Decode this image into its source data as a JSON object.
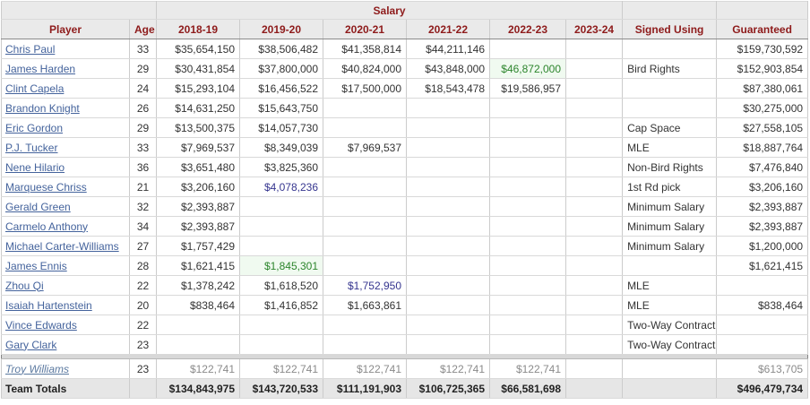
{
  "table": {
    "group_header": {
      "salary": "Salary"
    },
    "columns": [
      "Player",
      "Age",
      "2018-19",
      "2019-20",
      "2020-21",
      "2021-22",
      "2022-23",
      "2023-24",
      "Signed Using",
      "Guaranteed"
    ],
    "rows": [
      {
        "player": "Chris Paul",
        "age": "33",
        "salaries": [
          "$35,654,150",
          "$38,506,482",
          "$41,358,814",
          "$44,211,146",
          "",
          ""
        ],
        "styles": [
          "",
          "",
          "",
          "",
          "",
          ""
        ],
        "signed_using": "",
        "guaranteed": "$159,730,592"
      },
      {
        "player": "James Harden",
        "age": "29",
        "salaries": [
          "$30,431,854",
          "$37,800,000",
          "$40,824,000",
          "$43,848,000",
          "$46,872,000",
          ""
        ],
        "styles": [
          "",
          "",
          "",
          "",
          "green",
          ""
        ],
        "signed_using": "Bird Rights",
        "guaranteed": "$152,903,854"
      },
      {
        "player": "Clint Capela",
        "age": "24",
        "salaries": [
          "$15,293,104",
          "$16,456,522",
          "$17,500,000",
          "$18,543,478",
          "$19,586,957",
          ""
        ],
        "styles": [
          "",
          "",
          "",
          "",
          "",
          ""
        ],
        "signed_using": "",
        "guaranteed": "$87,380,061"
      },
      {
        "player": "Brandon Knight",
        "age": "26",
        "salaries": [
          "$14,631,250",
          "$15,643,750",
          "",
          "",
          "",
          ""
        ],
        "styles": [
          "",
          "",
          "",
          "",
          "",
          ""
        ],
        "signed_using": "",
        "guaranteed": "$30,275,000"
      },
      {
        "player": "Eric Gordon",
        "age": "29",
        "salaries": [
          "$13,500,375",
          "$14,057,730",
          "",
          "",
          "",
          ""
        ],
        "styles": [
          "",
          "",
          "",
          "",
          "",
          ""
        ],
        "signed_using": "Cap Space",
        "guaranteed": "$27,558,105"
      },
      {
        "player": "P.J. Tucker",
        "age": "33",
        "salaries": [
          "$7,969,537",
          "$8,349,039",
          "$7,969,537",
          "",
          "",
          ""
        ],
        "styles": [
          "",
          "",
          "",
          "",
          "",
          ""
        ],
        "signed_using": "MLE",
        "guaranteed": "$18,887,764"
      },
      {
        "player": "Nene Hilario",
        "age": "36",
        "salaries": [
          "$3,651,480",
          "$3,825,360",
          "",
          "",
          "",
          ""
        ],
        "styles": [
          "",
          "",
          "",
          "",
          "",
          ""
        ],
        "signed_using": "Non-Bird Rights",
        "guaranteed": "$7,476,840"
      },
      {
        "player": "Marquese Chriss",
        "age": "21",
        "salaries": [
          "$3,206,160",
          "$4,078,236",
          "",
          "",
          "",
          ""
        ],
        "styles": [
          "",
          "blue",
          "",
          "",
          "",
          ""
        ],
        "signed_using": "1st Rd pick",
        "guaranteed": "$3,206,160"
      },
      {
        "player": "Gerald Green",
        "age": "32",
        "salaries": [
          "$2,393,887",
          "",
          "",
          "",
          "",
          ""
        ],
        "styles": [
          "",
          "",
          "",
          "",
          "",
          ""
        ],
        "signed_using": "Minimum Salary",
        "guaranteed": "$2,393,887"
      },
      {
        "player": "Carmelo Anthony",
        "age": "34",
        "salaries": [
          "$2,393,887",
          "",
          "",
          "",
          "",
          ""
        ],
        "styles": [
          "",
          "",
          "",
          "",
          "",
          ""
        ],
        "signed_using": "Minimum Salary",
        "guaranteed": "$2,393,887"
      },
      {
        "player": "Michael Carter-Williams",
        "age": "27",
        "salaries": [
          "$1,757,429",
          "",
          "",
          "",
          "",
          ""
        ],
        "styles": [
          "",
          "",
          "",
          "",
          "",
          ""
        ],
        "signed_using": "Minimum Salary",
        "guaranteed": "$1,200,000"
      },
      {
        "player": "James Ennis",
        "age": "28",
        "salaries": [
          "$1,621,415",
          "$1,845,301",
          "",
          "",
          "",
          ""
        ],
        "styles": [
          "",
          "green",
          "",
          "",
          "",
          ""
        ],
        "signed_using": "",
        "guaranteed": "$1,621,415"
      },
      {
        "player": "Zhou Qi",
        "age": "22",
        "salaries": [
          "$1,378,242",
          "$1,618,520",
          "$1,752,950",
          "",
          "",
          ""
        ],
        "styles": [
          "",
          "",
          "blue",
          "",
          "",
          ""
        ],
        "signed_using": "MLE",
        "guaranteed": ""
      },
      {
        "player": "Isaiah Hartenstein",
        "age": "20",
        "salaries": [
          "$838,464",
          "$1,416,852",
          "$1,663,861",
          "",
          "",
          ""
        ],
        "styles": [
          "",
          "",
          "",
          "",
          "",
          ""
        ],
        "signed_using": "MLE",
        "guaranteed": "$838,464"
      },
      {
        "player": "Vince Edwards",
        "age": "22",
        "salaries": [
          "",
          "",
          "",
          "",
          "",
          ""
        ],
        "styles": [
          "",
          "",
          "",
          "",
          "",
          ""
        ],
        "signed_using": "Two-Way Contract",
        "guaranteed": ""
      },
      {
        "player": "Gary Clark",
        "age": "23",
        "salaries": [
          "",
          "",
          "",
          "",
          "",
          ""
        ],
        "styles": [
          "",
          "",
          "",
          "",
          "",
          ""
        ],
        "signed_using": "Two-Way Contract",
        "guaranteed": ""
      }
    ],
    "partial_row": {
      "player": "Troy Williams",
      "age": "23",
      "salaries": [
        "$122,741",
        "$122,741",
        "$122,741",
        "$122,741",
        "$122,741",
        ""
      ],
      "styles": [
        "",
        "",
        "",
        "",
        "",
        ""
      ],
      "signed_using": "",
      "guaranteed": "$613,705"
    },
    "totals_row": {
      "player": "Team Totals",
      "age": "",
      "salaries": [
        "$134,843,975",
        "$143,720,533",
        "$111,191,903",
        "$106,725,365",
        "$66,581,698",
        ""
      ],
      "styles": [
        "",
        "",
        "",
        "",
        "",
        ""
      ],
      "signed_using": "",
      "guaranteed": "$496,479,734"
    }
  },
  "colors": {
    "header_text": "#8e1b1b",
    "header_bg": "#eaeaea",
    "player_link": "#44639c",
    "green_value": "#2c852c",
    "green_value_bg": "#f0faf0",
    "blue_option_value": "#35358f",
    "partial_value_gray": "#8a8a8a",
    "totals_bg": "#e6e6e6",
    "separator_bg": "#d8d8d8",
    "table_border": "#828282"
  }
}
